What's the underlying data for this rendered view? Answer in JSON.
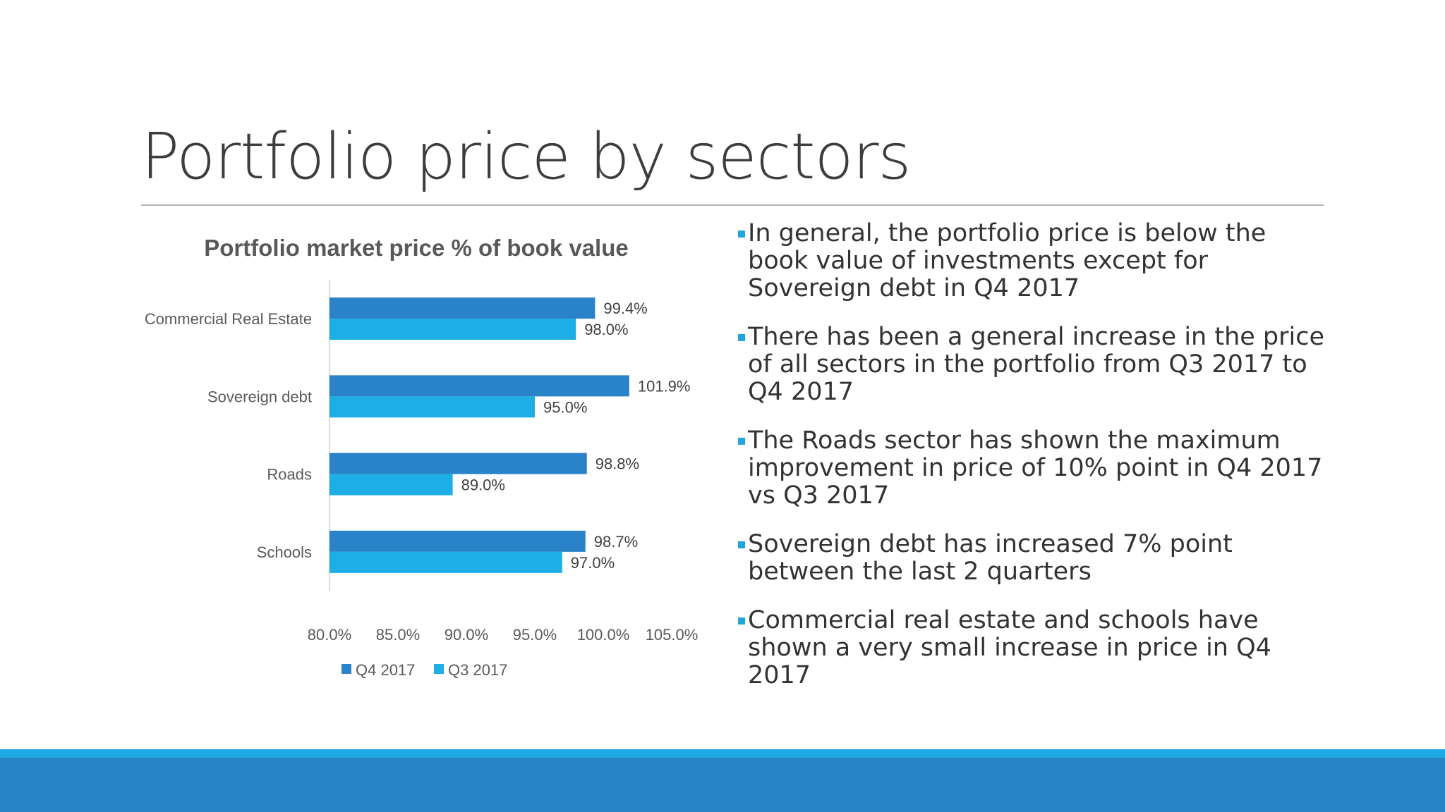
{
  "slide": {
    "title": "Portfolio price by sectors",
    "bullets": [
      "In general, the portfolio price is below the book value of investments except for Sovereign debt in Q4 2017",
      "There has been a general increase in the price of all sectors in the portfolio from Q3 2017 to Q4 2017",
      "The Roads sector has shown the maximum improvement in price of 10% point in Q4 2017 vs Q3 2017",
      "Sovereign debt has increased 7% point between the last 2 quarters",
      "Commercial real estate and schools have shown a very small increase in price in Q4 2017"
    ]
  },
  "colors": {
    "q4": "#2a82c9",
    "q3": "#1eaee6",
    "bullet_marker": "#1ea7df",
    "band_light": "#1eaae3",
    "band_dark": "#2784c6"
  },
  "chart_data": {
    "type": "bar",
    "orientation": "horizontal",
    "title": "Portfolio market price % of book value",
    "categories": [
      "Commercial Real Estate",
      "Sovereign debt",
      "Roads",
      "Schools"
    ],
    "series": [
      {
        "name": "Q4 2017",
        "values": [
          99.4,
          101.9,
          98.8,
          98.7
        ],
        "labels": [
          "99.4%",
          "101.9%",
          "98.8%",
          "98.7%"
        ]
      },
      {
        "name": "Q3 2017",
        "values": [
          98.0,
          95.0,
          89.0,
          97.0
        ],
        "labels": [
          "98.0%",
          "95.0%",
          "89.0%",
          "97.0%"
        ]
      }
    ],
    "xlim": [
      80,
      105
    ],
    "xticks": [
      80,
      85,
      90,
      95,
      100,
      105
    ],
    "xtick_labels": [
      "80.0%",
      "85.0%",
      "90.0%",
      "95.0%",
      "100.0%",
      "105.0%"
    ],
    "xlabel": "",
    "ylabel": "",
    "grid": false,
    "legend_position": "bottom"
  }
}
